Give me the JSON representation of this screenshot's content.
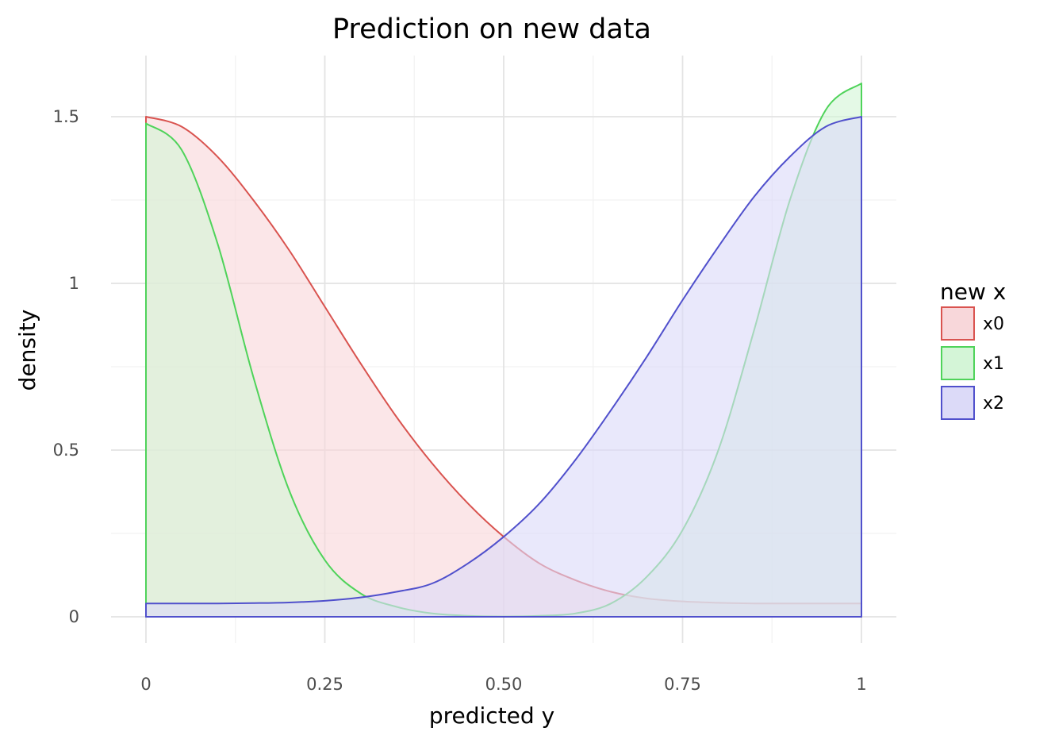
{
  "chart_data": {
    "type": "area",
    "title": "Prediction on new data",
    "xlabel": "predicted y",
    "ylabel": "density",
    "xlim": [
      0,
      1
    ],
    "ylim": [
      -0.08,
      1.7
    ],
    "grid": true,
    "x_ticks": [
      {
        "value": 0,
        "label": "0"
      },
      {
        "value": 0.25,
        "label": "0.25"
      },
      {
        "value": 0.5,
        "label": "0.50"
      },
      {
        "value": 0.75,
        "label": "0.75"
      },
      {
        "value": 1,
        "label": "1"
      }
    ],
    "y_ticks": [
      {
        "value": 0,
        "label": "0"
      },
      {
        "value": 0.5,
        "label": "0.5"
      },
      {
        "value": 1,
        "label": "1"
      },
      {
        "value": 1.5,
        "label": "1.5"
      }
    ],
    "legend": {
      "title": "new x",
      "placement": "right"
    },
    "x": [
      0,
      0.05,
      0.1,
      0.15,
      0.2,
      0.25,
      0.3,
      0.35,
      0.4,
      0.45,
      0.5,
      0.55,
      0.6,
      0.65,
      0.7,
      0.75,
      0.8,
      0.85,
      0.9,
      0.95,
      1
    ],
    "series": [
      {
        "name": "x0",
        "line_color": "#d9534f",
        "fill_color": "#f8d7da",
        "values": [
          1.5,
          1.47,
          1.38,
          1.25,
          1.1,
          0.93,
          0.76,
          0.6,
          0.46,
          0.34,
          0.24,
          0.16,
          0.11,
          0.075,
          0.055,
          0.046,
          0.042,
          0.04,
          0.04,
          0.04,
          0.04
        ]
      },
      {
        "name": "x1",
        "line_color": "#4fd35a",
        "fill_color": "#d4f5d7",
        "values": [
          1.48,
          1.4,
          1.12,
          0.72,
          0.38,
          0.17,
          0.07,
          0.03,
          0.01,
          0.003,
          0.001,
          0.003,
          0.01,
          0.04,
          0.12,
          0.26,
          0.5,
          0.86,
          1.25,
          1.52,
          1.6
        ]
      },
      {
        "name": "x2",
        "line_color": "#5050cc",
        "fill_color": "#dcdaf8",
        "values": [
          0.04,
          0.04,
          0.04,
          0.041,
          0.043,
          0.048,
          0.058,
          0.075,
          0.1,
          0.16,
          0.24,
          0.34,
          0.47,
          0.62,
          0.78,
          0.95,
          1.11,
          1.26,
          1.38,
          1.47,
          1.5
        ]
      }
    ]
  }
}
